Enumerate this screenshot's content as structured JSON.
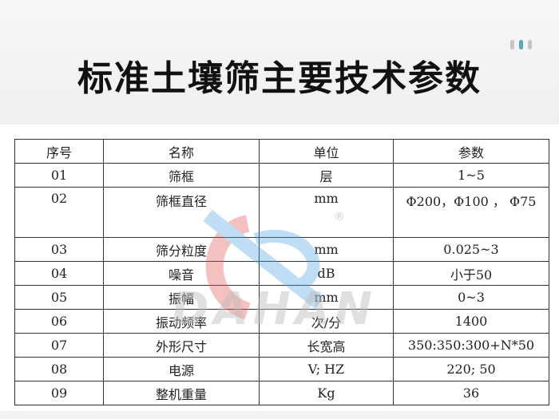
{
  "title": "标准土壤筛主要技术参数",
  "watermark": "DAHAN",
  "colors": {
    "accent": "#5aa6c0",
    "watermark_red": "#e05050",
    "watermark_blue": "#4aa0e0"
  },
  "table": {
    "headers": [
      "序号",
      "名称",
      "单位",
      "参数"
    ],
    "rows": [
      [
        "01",
        "筛框",
        "层",
        "1~5"
      ],
      [
        "02",
        "筛框直径",
        "mm",
        "Φ200，Φ100 ， Φ75"
      ],
      [
        "03",
        "筛分粒度",
        "mm",
        "0.025~3"
      ],
      [
        "04",
        "噪音",
        "dB",
        "小于50"
      ],
      [
        "05",
        "振幅",
        "mm",
        "0~3"
      ],
      [
        "06",
        "振动频率",
        "次/分",
        "1400"
      ],
      [
        "07",
        "外形尺寸",
        "长宽高",
        "350:350:300+N*50"
      ],
      [
        "08",
        "电源",
        "V; HZ",
        "220; 50"
      ],
      [
        "09",
        "整机重量",
        "Kg",
        "36"
      ]
    ]
  }
}
